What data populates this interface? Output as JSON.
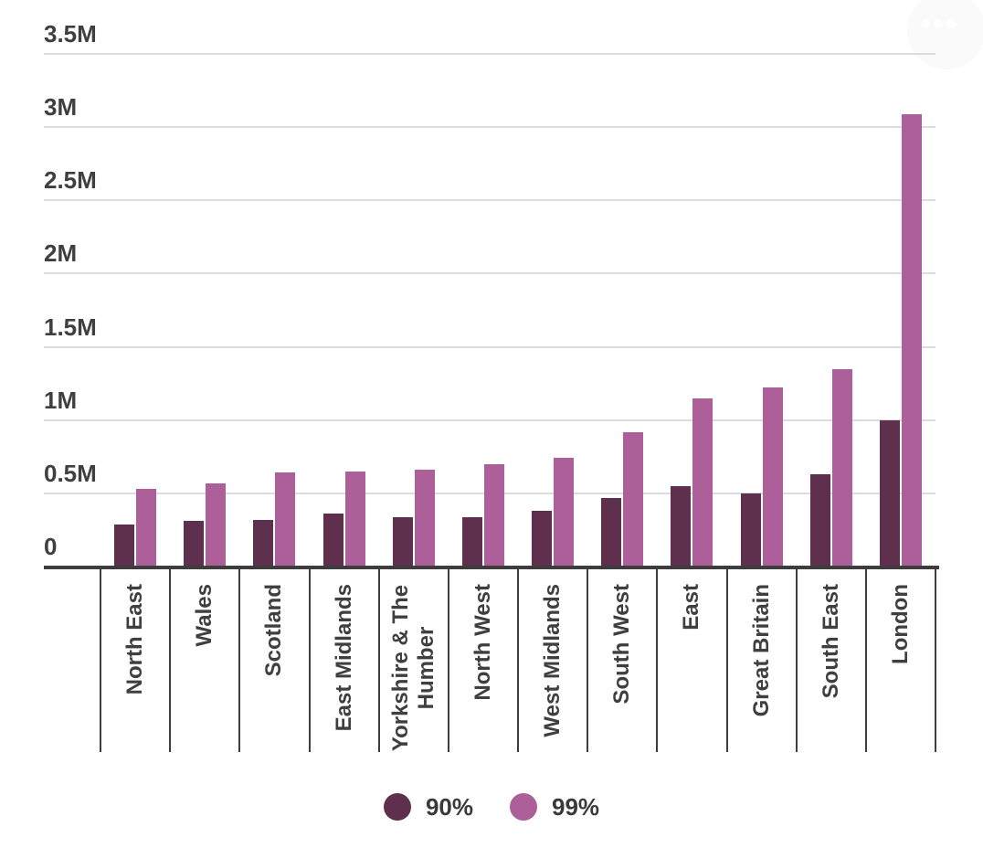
{
  "menu": {
    "icon": "ellipsis-icon"
  },
  "colors": {
    "series_90": "#5f2f4e",
    "series_99": "#ac5f98",
    "gridline": "#dcdcdc",
    "axis": "#3d3d3d",
    "text": "#3f3f3f",
    "background": "#ffffff"
  },
  "chart_data": {
    "type": "bar",
    "title": "",
    "xlabel": "",
    "ylabel": "",
    "categories": [
      "North East",
      "Wales",
      "Scotland",
      "East Midlands",
      "Yorkshire & The Humber",
      "North West",
      "West Midlands",
      "South West",
      "East",
      "Great Britain",
      "South East",
      "London"
    ],
    "series": [
      {
        "name": "90%",
        "color": "#5f2f4e",
        "values": [
          0.29,
          0.31,
          0.32,
          0.36,
          0.34,
          0.34,
          0.38,
          0.47,
          0.55,
          0.5,
          0.63,
          1.0
        ]
      },
      {
        "name": "99%",
        "color": "#ac5f98",
        "values": [
          0.53,
          0.57,
          0.64,
          0.65,
          0.66,
          0.7,
          0.74,
          0.92,
          1.15,
          1.22,
          1.35,
          3.09
        ]
      }
    ],
    "y_ticks": [
      {
        "label": "3.5M",
        "value": 3.5
      },
      {
        "label": "3M",
        "value": 3.0
      },
      {
        "label": "2.5M",
        "value": 2.5
      },
      {
        "label": "2M",
        "value": 2.0
      },
      {
        "label": "1.5M",
        "value": 1.5
      },
      {
        "label": "1M",
        "value": 1.0
      },
      {
        "label": "0.5M",
        "value": 0.5
      },
      {
        "label": "0",
        "value": 0.0
      }
    ],
    "ylim": [
      0,
      3.5
    ],
    "grid": true,
    "legend_position": "bottom",
    "legend": [
      "90%",
      "99%"
    ]
  }
}
